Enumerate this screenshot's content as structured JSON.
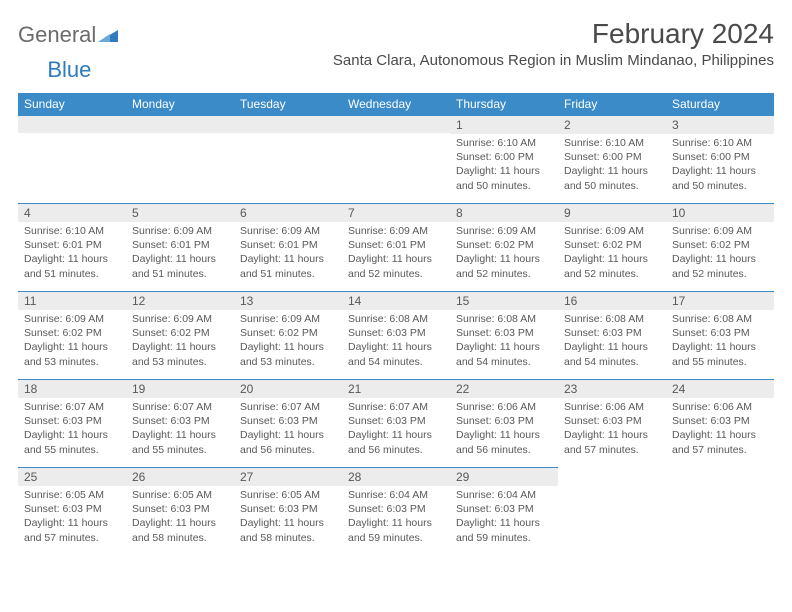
{
  "logo": {
    "text1": "General",
    "text2": "Blue",
    "icon_color": "#2f7bbf"
  },
  "header": {
    "month_title": "February 2024",
    "location": "Santa Clara, Autonomous Region in Muslim Mindanao, Philippines"
  },
  "colors": {
    "header_bg": "#3b8bc8",
    "header_text": "#ffffff",
    "daynum_bg": "#ececec",
    "text": "#595959",
    "page_bg": "#ffffff"
  },
  "day_labels": [
    "Sunday",
    "Monday",
    "Tuesday",
    "Wednesday",
    "Thursday",
    "Friday",
    "Saturday"
  ],
  "weeks": [
    [
      null,
      null,
      null,
      null,
      {
        "n": "1",
        "sunrise": "6:10 AM",
        "sunset": "6:00 PM",
        "daylight": "11 hours and 50 minutes."
      },
      {
        "n": "2",
        "sunrise": "6:10 AM",
        "sunset": "6:00 PM",
        "daylight": "11 hours and 50 minutes."
      },
      {
        "n": "3",
        "sunrise": "6:10 AM",
        "sunset": "6:00 PM",
        "daylight": "11 hours and 50 minutes."
      }
    ],
    [
      {
        "n": "4",
        "sunrise": "6:10 AM",
        "sunset": "6:01 PM",
        "daylight": "11 hours and 51 minutes."
      },
      {
        "n": "5",
        "sunrise": "6:09 AM",
        "sunset": "6:01 PM",
        "daylight": "11 hours and 51 minutes."
      },
      {
        "n": "6",
        "sunrise": "6:09 AM",
        "sunset": "6:01 PM",
        "daylight": "11 hours and 51 minutes."
      },
      {
        "n": "7",
        "sunrise": "6:09 AM",
        "sunset": "6:01 PM",
        "daylight": "11 hours and 52 minutes."
      },
      {
        "n": "8",
        "sunrise": "6:09 AM",
        "sunset": "6:02 PM",
        "daylight": "11 hours and 52 minutes."
      },
      {
        "n": "9",
        "sunrise": "6:09 AM",
        "sunset": "6:02 PM",
        "daylight": "11 hours and 52 minutes."
      },
      {
        "n": "10",
        "sunrise": "6:09 AM",
        "sunset": "6:02 PM",
        "daylight": "11 hours and 52 minutes."
      }
    ],
    [
      {
        "n": "11",
        "sunrise": "6:09 AM",
        "sunset": "6:02 PM",
        "daylight": "11 hours and 53 minutes."
      },
      {
        "n": "12",
        "sunrise": "6:09 AM",
        "sunset": "6:02 PM",
        "daylight": "11 hours and 53 minutes."
      },
      {
        "n": "13",
        "sunrise": "6:09 AM",
        "sunset": "6:02 PM",
        "daylight": "11 hours and 53 minutes."
      },
      {
        "n": "14",
        "sunrise": "6:08 AM",
        "sunset": "6:03 PM",
        "daylight": "11 hours and 54 minutes."
      },
      {
        "n": "15",
        "sunrise": "6:08 AM",
        "sunset": "6:03 PM",
        "daylight": "11 hours and 54 minutes."
      },
      {
        "n": "16",
        "sunrise": "6:08 AM",
        "sunset": "6:03 PM",
        "daylight": "11 hours and 54 minutes."
      },
      {
        "n": "17",
        "sunrise": "6:08 AM",
        "sunset": "6:03 PM",
        "daylight": "11 hours and 55 minutes."
      }
    ],
    [
      {
        "n": "18",
        "sunrise": "6:07 AM",
        "sunset": "6:03 PM",
        "daylight": "11 hours and 55 minutes."
      },
      {
        "n": "19",
        "sunrise": "6:07 AM",
        "sunset": "6:03 PM",
        "daylight": "11 hours and 55 minutes."
      },
      {
        "n": "20",
        "sunrise": "6:07 AM",
        "sunset": "6:03 PM",
        "daylight": "11 hours and 56 minutes."
      },
      {
        "n": "21",
        "sunrise": "6:07 AM",
        "sunset": "6:03 PM",
        "daylight": "11 hours and 56 minutes."
      },
      {
        "n": "22",
        "sunrise": "6:06 AM",
        "sunset": "6:03 PM",
        "daylight": "11 hours and 56 minutes."
      },
      {
        "n": "23",
        "sunrise": "6:06 AM",
        "sunset": "6:03 PM",
        "daylight": "11 hours and 57 minutes."
      },
      {
        "n": "24",
        "sunrise": "6:06 AM",
        "sunset": "6:03 PM",
        "daylight": "11 hours and 57 minutes."
      }
    ],
    [
      {
        "n": "25",
        "sunrise": "6:05 AM",
        "sunset": "6:03 PM",
        "daylight": "11 hours and 57 minutes."
      },
      {
        "n": "26",
        "sunrise": "6:05 AM",
        "sunset": "6:03 PM",
        "daylight": "11 hours and 58 minutes."
      },
      {
        "n": "27",
        "sunrise": "6:05 AM",
        "sunset": "6:03 PM",
        "daylight": "11 hours and 58 minutes."
      },
      {
        "n": "28",
        "sunrise": "6:04 AM",
        "sunset": "6:03 PM",
        "daylight": "11 hours and 59 minutes."
      },
      {
        "n": "29",
        "sunrise": "6:04 AM",
        "sunset": "6:03 PM",
        "daylight": "11 hours and 59 minutes."
      },
      null,
      null
    ]
  ],
  "labels": {
    "sunrise_prefix": "Sunrise: ",
    "sunset_prefix": "Sunset: ",
    "daylight_prefix": "Daylight: "
  }
}
